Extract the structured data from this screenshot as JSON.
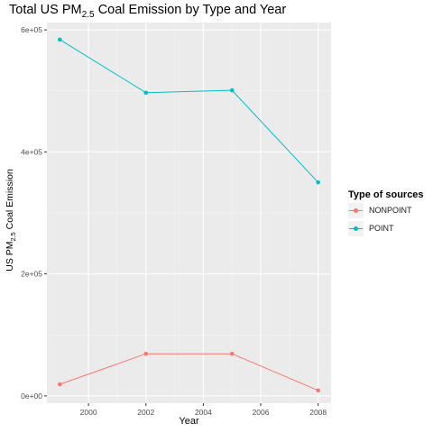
{
  "chart_data": {
    "type": "line",
    "title_main": "Total US PM",
    "title_sub": "2.5",
    "title_rest": " Coal Emission by Type and Year",
    "xlabel": "Year",
    "ylabel_main": "US PM",
    "ylabel_sub": "2.5",
    "ylabel_rest": " Coal Emission",
    "x": [
      1999,
      2002,
      2005,
      2008
    ],
    "xlim": [
      1998.55,
      2008.45
    ],
    "ylim": [
      -12000,
      612000
    ],
    "xticks": [
      2000,
      2002,
      2004,
      2006,
      2008
    ],
    "yticks": [
      0,
      200000,
      400000,
      600000
    ],
    "ytick_labels": [
      "0e+00",
      "2e+05",
      "4e+05",
      "6e+05"
    ],
    "grid": true,
    "legend_position": "right",
    "legend_title": "Type of sources",
    "series": [
      {
        "name": "NONPOINT",
        "color": "#F8766D",
        "values": [
          19000,
          69000,
          69000,
          9000
        ]
      },
      {
        "name": "POINT",
        "color": "#00BFC4",
        "values": [
          584000,
          497000,
          501000,
          350000
        ]
      }
    ]
  }
}
